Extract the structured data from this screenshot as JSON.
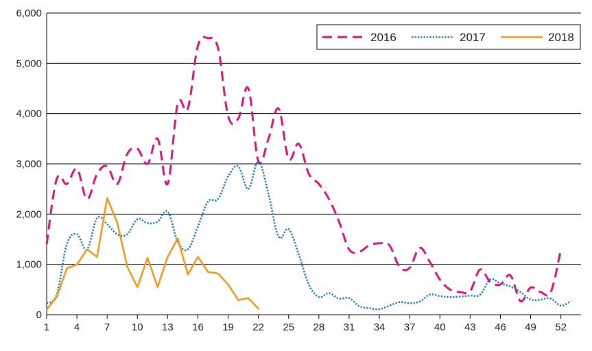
{
  "chart_data": {
    "type": "line",
    "title": "",
    "xlabel": "",
    "ylabel": "",
    "x_ticks": [
      1,
      4,
      7,
      10,
      13,
      16,
      19,
      22,
      25,
      28,
      31,
      34,
      37,
      40,
      43,
      46,
      49,
      52
    ],
    "xlim": [
      1,
      54
    ],
    "ylim": [
      0,
      6000
    ],
    "y_ticks": [
      0,
      1000,
      2000,
      3000,
      4000,
      5000,
      6000
    ],
    "y_tick_labels": [
      "0",
      "1,000",
      "2,000",
      "3,000",
      "4,000",
      "5,000",
      "6,000"
    ],
    "grid": "horizontal",
    "legend_position": "top-right",
    "series": [
      {
        "name": "2016",
        "color": "#d1157b",
        "style": "dashed",
        "x": [
          1,
          2,
          3,
          4,
          5,
          6,
          7,
          8,
          9,
          10,
          11,
          12,
          13,
          14,
          15,
          16,
          17,
          18,
          19,
          20,
          21,
          22,
          23,
          24,
          25,
          26,
          27,
          28,
          29,
          30,
          31,
          32,
          33,
          34,
          35,
          36,
          37,
          38,
          39,
          40,
          41,
          42,
          43,
          44,
          45,
          46,
          47,
          48,
          49,
          50,
          51,
          52
        ],
        "values": [
          1400,
          2700,
          2600,
          2900,
          2300,
          2800,
          2950,
          2600,
          3200,
          3300,
          3000,
          3500,
          2600,
          4200,
          4100,
          5350,
          5500,
          5300,
          3950,
          3900,
          4500,
          3050,
          3500,
          4100,
          3100,
          3400,
          2800,
          2600,
          2300,
          1850,
          1300,
          1250,
          1380,
          1420,
          1380,
          950,
          930,
          1330,
          1050,
          700,
          500,
          450,
          470,
          900,
          650,
          600,
          780,
          270,
          540,
          450,
          450,
          1300
        ]
      },
      {
        "name": "2017",
        "color": "#1b78b4",
        "style": "dotted",
        "x": [
          1,
          2,
          3,
          4,
          5,
          6,
          7,
          8,
          9,
          10,
          11,
          12,
          13,
          14,
          15,
          16,
          17,
          18,
          19,
          20,
          21,
          22,
          23,
          24,
          25,
          26,
          27,
          28,
          29,
          30,
          31,
          32,
          33,
          34,
          35,
          36,
          37,
          38,
          39,
          40,
          41,
          42,
          43,
          44,
          45,
          46,
          47,
          48,
          49,
          50,
          51,
          52,
          53
        ],
        "values": [
          230,
          400,
          1400,
          1600,
          1300,
          1920,
          1800,
          1600,
          1600,
          1900,
          1820,
          1850,
          2050,
          1450,
          1300,
          1750,
          2250,
          2300,
          2750,
          2950,
          2500,
          3050,
          2400,
          1550,
          1700,
          1200,
          600,
          350,
          430,
          320,
          330,
          170,
          130,
          110,
          180,
          250,
          230,
          260,
          400,
          370,
          350,
          360,
          380,
          400,
          700,
          620,
          560,
          450,
          300,
          300,
          320,
          180,
          270
        ]
      },
      {
        "name": "2018",
        "color": "#f09a1f",
        "style": "solid",
        "x": [
          1,
          2,
          3,
          4,
          5,
          6,
          7,
          8,
          9,
          10,
          11,
          12,
          13,
          14,
          15,
          16,
          17,
          18,
          19,
          20,
          21,
          22
        ],
        "values": [
          100,
          350,
          920,
          1000,
          1300,
          1150,
          2320,
          1830,
          950,
          550,
          1130,
          550,
          1150,
          1520,
          800,
          1150,
          850,
          820,
          600,
          290,
          330,
          120
        ]
      }
    ]
  }
}
